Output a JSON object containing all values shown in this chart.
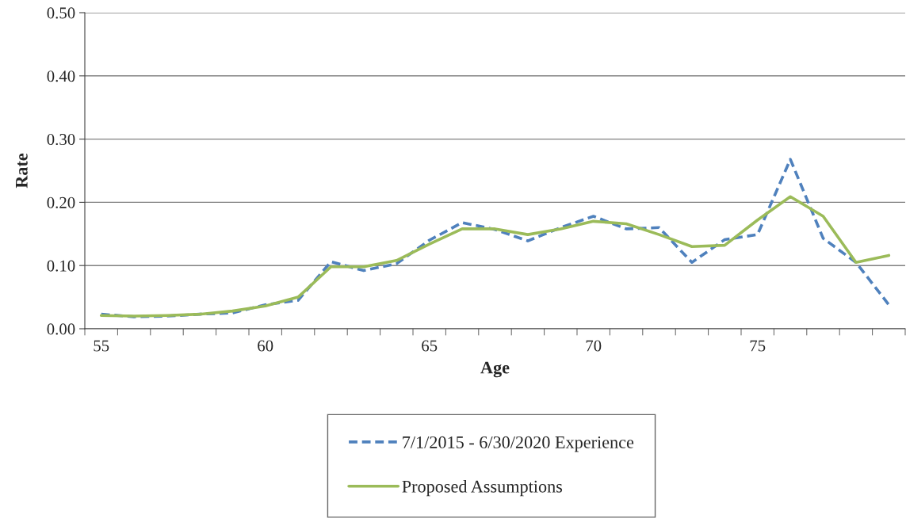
{
  "chart_data": {
    "type": "line",
    "xlabel": "Age",
    "ylabel": "Rate",
    "categories": [
      "55",
      null,
      null,
      null,
      null,
      "60",
      null,
      null,
      null,
      null,
      "65",
      null,
      null,
      null,
      null,
      "70",
      null,
      null,
      null,
      null,
      "75",
      null,
      null,
      null,
      null
    ],
    "series": [
      {
        "name": "7/1/2015 - 6/30/2020 Experience",
        "color": "#4f81bd",
        "line_style": "dashed",
        "values": [
          0.023,
          0.019,
          0.02,
          0.023,
          0.025,
          0.038,
          0.045,
          0.106,
          0.092,
          0.103,
          0.14,
          0.168,
          0.157,
          0.139,
          0.16,
          0.178,
          0.158,
          0.16,
          0.105,
          0.141,
          0.149,
          0.268,
          0.143,
          0.105,
          0.038
        ]
      },
      {
        "name": "Proposed Assumptions",
        "color": "#9bbb59",
        "line_style": "solid",
        "values": [
          0.021,
          0.02,
          0.021,
          0.023,
          0.028,
          0.036,
          0.05,
          0.098,
          0.098,
          0.108,
          0.134,
          0.158,
          0.158,
          0.149,
          0.158,
          0.17,
          0.166,
          0.149,
          0.13,
          0.132,
          0.172,
          0.209,
          0.178,
          0.105,
          0.116
        ]
      }
    ],
    "ylim": [
      0,
      0.5
    ],
    "yticks": [
      {
        "value": 0,
        "label": "0.00"
      },
      {
        "value": 0.1,
        "label": "0.10"
      },
      {
        "value": 0.2,
        "label": "0.20"
      },
      {
        "value": 0.3,
        "label": "0.30"
      },
      {
        "value": 0.4,
        "label": "0.40"
      },
      {
        "value": 0.5,
        "label": "0.50"
      }
    ],
    "grid": "y",
    "legend": "bottom",
    "marker": "none"
  }
}
